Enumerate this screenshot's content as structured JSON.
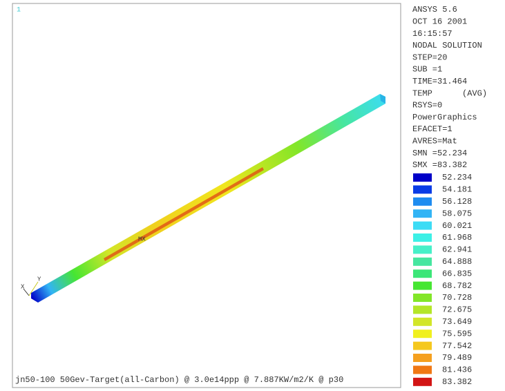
{
  "window_number": "1",
  "info": [
    "ANSYS 5.6",
    "OCT 16 2001",
    "16:15:57",
    "NODAL SOLUTION",
    "STEP=20",
    "SUB =1",
    "TIME=31.464",
    "TEMP      (AVG)",
    "RSYS=0",
    "PowerGraphics",
    "EFACET=1",
    "AVRES=Mat",
    "SMN =52.234",
    "SMX =83.382"
  ],
  "legend": [
    {
      "label": "52.234",
      "color": "#0000c8"
    },
    {
      "label": "54.181",
      "color": "#0a3ce6"
    },
    {
      "label": "56.128",
      "color": "#1e8cf0"
    },
    {
      "label": "58.075",
      "color": "#32b4f5"
    },
    {
      "label": "60.021",
      "color": "#3cdcf5"
    },
    {
      "label": "61.968",
      "color": "#3cf0e6"
    },
    {
      "label": "62.941",
      "color": "#46f0c8"
    },
    {
      "label": "64.888",
      "color": "#46e6a0"
    },
    {
      "label": "66.835",
      "color": "#3ce678"
    },
    {
      "label": "68.782",
      "color": "#46e632"
    },
    {
      "label": "70.728",
      "color": "#82e628"
    },
    {
      "label": "72.675",
      "color": "#b4e628"
    },
    {
      "label": "73.649",
      "color": "#d2e628"
    },
    {
      "label": "75.595",
      "color": "#f0f01e"
    },
    {
      "label": "77.542",
      "color": "#f5c81e"
    },
    {
      "label": "79.489",
      "color": "#f5a01e"
    },
    {
      "label": "81.436",
      "color": "#f07814"
    },
    {
      "label": "83.382",
      "color": "#d21414"
    }
  ],
  "max_marker": "MX",
  "triad_x": "X",
  "triad_y": "Y",
  "footer": "jn50-100 50Gev-Target(all-Carbon) @ 3.0e14ppp @ 7.887KW/m2/K @ p30"
}
